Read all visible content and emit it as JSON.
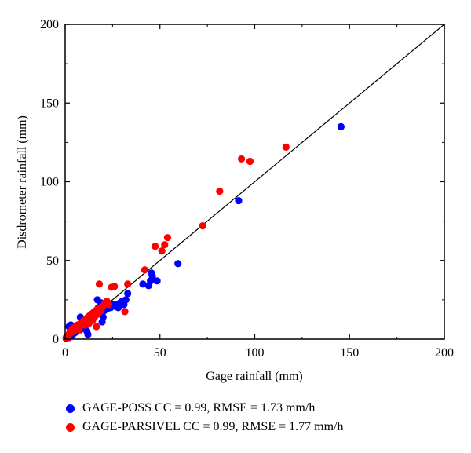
{
  "chart_data": {
    "type": "scatter",
    "xlabel": "Gage rainfall (mm)",
    "ylabel": "Disdrometer rainfall (mm)",
    "xlim": [
      0,
      200
    ],
    "ylim": [
      0,
      200
    ],
    "xticks": [
      0,
      50,
      100,
      150,
      200
    ],
    "yticks": [
      0,
      50,
      100,
      150,
      200
    ],
    "grid": false,
    "reference_line": "y = x",
    "legend_position": "bottom",
    "series": [
      {
        "legend": "GAGE-POSS CC = 0.99, RMSE = 1.73 mm/h",
        "color": "#0000ff",
        "points": [
          [
            0.5,
            0.5
          ],
          [
            1,
            1
          ],
          [
            1.5,
            2
          ],
          [
            2,
            1
          ],
          [
            2.5,
            3
          ],
          [
            3,
            2
          ],
          [
            3.5,
            4
          ],
          [
            4,
            3
          ],
          [
            4.5,
            5
          ],
          [
            5,
            4
          ],
          [
            2,
            8
          ],
          [
            3,
            9
          ],
          [
            5.5,
            6
          ],
          [
            6,
            5
          ],
          [
            7,
            7
          ],
          [
            7.5,
            8
          ],
          [
            8,
            6
          ],
          [
            8,
            14
          ],
          [
            8.5,
            10
          ],
          [
            9,
            9
          ],
          [
            9.5,
            11
          ],
          [
            10,
            10
          ],
          [
            10.5,
            8
          ],
          [
            11,
            12
          ],
          [
            11.5,
            5
          ],
          [
            12,
            3
          ],
          [
            12.5,
            13
          ],
          [
            13,
            11
          ],
          [
            13.5,
            15
          ],
          [
            14,
            12
          ],
          [
            14.5,
            14
          ],
          [
            15,
            16
          ],
          [
            15.5,
            14
          ],
          [
            16,
            18
          ],
          [
            16.5,
            17
          ],
          [
            17,
            25
          ],
          [
            17.5,
            20
          ],
          [
            18,
            19
          ],
          [
            18.5,
            21
          ],
          [
            19,
            23
          ],
          [
            19.5,
            11
          ],
          [
            20,
            14
          ],
          [
            20.5,
            18
          ],
          [
            21,
            20
          ],
          [
            21.5,
            22
          ],
          [
            22,
            19
          ],
          [
            23,
            21
          ],
          [
            24,
            20
          ],
          [
            25,
            22
          ],
          [
            26,
            21
          ],
          [
            27,
            22
          ],
          [
            28,
            20
          ],
          [
            29,
            23
          ],
          [
            30,
            24
          ],
          [
            31,
            22
          ],
          [
            32,
            25
          ],
          [
            33,
            29
          ],
          [
            41,
            35
          ],
          [
            44,
            34
          ],
          [
            45,
            37
          ],
          [
            45.5,
            42
          ],
          [
            46,
            40
          ],
          [
            48.5,
            37
          ],
          [
            59.5,
            48
          ],
          [
            91.5,
            88
          ],
          [
            145.5,
            135
          ]
        ]
      },
      {
        "legend": "GAGE-PARSIVEL CC = 0.99, RMSE = 1.77 mm/h",
        "color": "#ff0000",
        "points": [
          [
            0.5,
            1
          ],
          [
            1,
            2
          ],
          [
            1.5,
            1
          ],
          [
            2,
            3
          ],
          [
            2.5,
            5
          ],
          [
            3,
            4
          ],
          [
            3.5,
            6
          ],
          [
            4,
            7
          ],
          [
            4.5,
            5
          ],
          [
            5,
            6
          ],
          [
            5.5,
            8
          ],
          [
            6,
            7
          ],
          [
            6.5,
            9
          ],
          [
            7,
            8
          ],
          [
            7.5,
            6
          ],
          [
            8,
            10
          ],
          [
            8.5,
            9
          ],
          [
            9,
            11
          ],
          [
            9.5,
            10
          ],
          [
            10,
            12
          ],
          [
            10.5,
            9
          ],
          [
            11,
            13
          ],
          [
            11.5,
            11
          ],
          [
            12,
            14
          ],
          [
            12.5,
            10
          ],
          [
            13,
            15
          ],
          [
            13.5,
            13
          ],
          [
            14,
            16
          ],
          [
            14.5,
            12
          ],
          [
            15,
            17
          ],
          [
            15.5,
            14
          ],
          [
            16,
            18
          ],
          [
            16.5,
            8
          ],
          [
            17,
            19
          ],
          [
            17.5,
            16
          ],
          [
            18,
            35
          ],
          [
            18.5,
            20
          ],
          [
            19,
            18
          ],
          [
            20,
            21
          ],
          [
            21,
            23
          ],
          [
            22,
            24
          ],
          [
            23,
            22
          ],
          [
            24.5,
            33
          ],
          [
            26,
            33.5
          ],
          [
            31.5,
            17.5
          ],
          [
            33,
            35
          ],
          [
            42,
            44
          ],
          [
            47.5,
            59
          ],
          [
            51,
            56
          ],
          [
            52.5,
            60
          ],
          [
            54,
            64.5
          ],
          [
            72.5,
            72
          ],
          [
            81.5,
            94
          ],
          [
            93,
            114.5
          ],
          [
            97.5,
            113
          ],
          [
            116.5,
            122
          ]
        ]
      }
    ]
  }
}
